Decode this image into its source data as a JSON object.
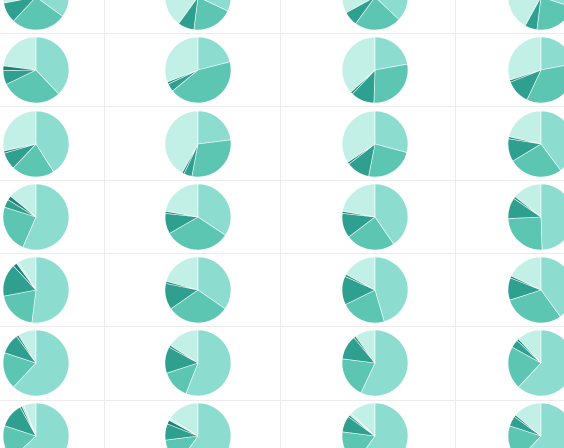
{
  "chart_data": {
    "type": "pie",
    "title": "",
    "legend": "none",
    "colors": [
      "#c2f0e6",
      "#8cddcf",
      "#5cc6b3",
      "#2fa08f",
      "#1d8575"
    ],
    "rows": [
      [
        [
          28,
          35,
          27,
          10
        ],
        [
          40,
          32,
          20,
          8
        ],
        [
          33,
          37,
          23,
          7
        ],
        [
          42,
          30,
          22,
          6
        ]
      ],
      [
        [
          20,
          33,
          26,
          6,
          2
        ],
        [
          31,
          21,
          43,
          4,
          1
        ],
        [
          35,
          21,
          27,
          11,
          1
        ],
        [
          30,
          22,
          35,
          12,
          1
        ]
      ],
      [
        [
          27,
          39,
          20,
          8,
          1
        ],
        [
          42,
          23,
          30,
          4,
          1
        ],
        [
          33,
          28,
          23,
          11,
          1
        ],
        [
          21,
          39,
          26,
          11,
          1
        ]
      ],
      [
        [
          14,
          56,
          23,
          4,
          2
        ],
        [
          22,
          34,
          32,
          10,
          1
        ],
        [
          22,
          40,
          24,
          12,
          1
        ],
        [
          14,
          48,
          24,
          10,
          1
        ]
      ],
      [
        [
          9,
          52,
          20,
          16,
          2,
          1
        ],
        [
          21,
          35,
          31,
          13,
          1
        ],
        [
          17,
          45,
          22,
          14,
          1
        ],
        [
          18,
          40,
          30,
          11,
          1
        ]
      ],
      [
        [
          9,
          62,
          18,
          10,
          1
        ],
        [
          16,
          56,
          14,
          13,
          1
        ],
        [
          10,
          57,
          20,
          12,
          1
        ],
        [
          12,
          62,
          21,
          4,
          1
        ]
      ],
      [
        [
          6,
          63,
          17,
          12,
          1,
          1
        ],
        [
          16,
          60,
          13,
          8,
          2,
          1
        ],
        [
          13,
          60,
          17,
          8,
          1,
          1
        ],
        [
          14,
          62,
          18,
          5,
          1
        ]
      ]
    ]
  }
}
